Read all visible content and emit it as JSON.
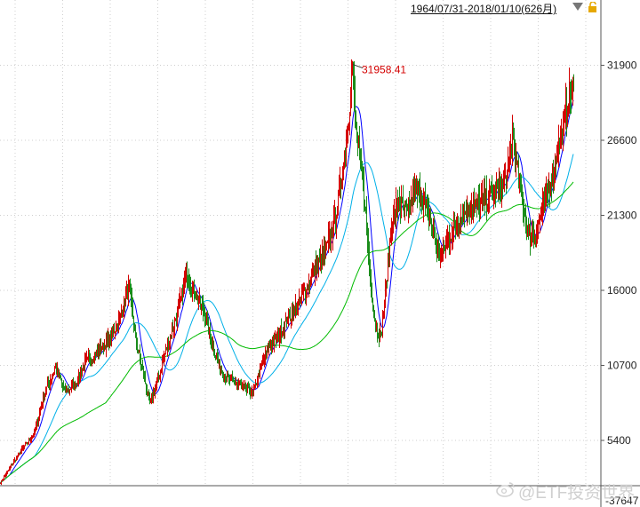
{
  "header": {
    "range_label": "1964/07/31-2018/01/10(626月)"
  },
  "icons": {
    "dropdown": "chevron-down-icon",
    "lock": "lock-icon",
    "watermark": "weibo-icon"
  },
  "watermark": {
    "text": "@ETF投资世界"
  },
  "colors": {
    "up_candle": "#d40000",
    "down_candle": "#1a8c1a",
    "ma_short": "#0000ff",
    "ma_mid": "#00b0e8",
    "ma_long": "#00bb00",
    "peak_label": "#d40000",
    "grid": "#cfcfcf"
  },
  "chart_data": {
    "type": "candlestick",
    "title": "",
    "xlabel": "",
    "ylabel": "",
    "x_range": [
      "1964/07/31",
      "2018/01/10"
    ],
    "period_count": 626,
    "ylim": [
      100,
      34000
    ],
    "y_ticks": [
      31900,
      26600,
      21300,
      16000,
      10700,
      5400
    ],
    "lower_panel_tick": "37647",
    "grid": true,
    "peak": {
      "label": "31958.41",
      "value": 31958.41
    },
    "anchors": [
      [
        0,
        2400
      ],
      [
        12,
        3600
      ],
      [
        25,
        4800
      ],
      [
        38,
        5900
      ],
      [
        50,
        8800
      ],
      [
        62,
        10600
      ],
      [
        72,
        8900
      ],
      [
        84,
        9300
      ],
      [
        95,
        10900
      ],
      [
        112,
        11800
      ],
      [
        125,
        12700
      ],
      [
        135,
        14200
      ],
      [
        145,
        16200
      ],
      [
        152,
        12500
      ],
      [
        160,
        10300
      ],
      [
        168,
        8000
      ],
      [
        176,
        9400
      ],
      [
        186,
        11800
      ],
      [
        198,
        14100
      ],
      [
        210,
        17300
      ],
      [
        218,
        15900
      ],
      [
        228,
        14600
      ],
      [
        236,
        12700
      ],
      [
        246,
        10700
      ],
      [
        256,
        9700
      ],
      [
        270,
        9300
      ],
      [
        284,
        8700
      ],
      [
        292,
        10300
      ],
      [
        300,
        11800
      ],
      [
        312,
        12700
      ],
      [
        322,
        13900
      ],
      [
        338,
        15300
      ],
      [
        352,
        17300
      ],
      [
        366,
        18800
      ],
      [
        376,
        20800
      ],
      [
        386,
        24900
      ],
      [
        392,
        28500
      ],
      [
        396,
        31958
      ],
      [
        400,
        27300
      ],
      [
        404,
        25500
      ],
      [
        410,
        22300
      ],
      [
        416,
        16800
      ],
      [
        422,
        13400
      ],
      [
        428,
        12700
      ],
      [
        434,
        16400
      ],
      [
        440,
        20800
      ],
      [
        448,
        22300
      ],
      [
        458,
        21300
      ],
      [
        466,
        23100
      ],
      [
        474,
        22700
      ],
      [
        484,
        20900
      ],
      [
        494,
        18400
      ],
      [
        504,
        19700
      ],
      [
        512,
        20400
      ],
      [
        520,
        21400
      ],
      [
        532,
        22000
      ],
      [
        544,
        22400
      ],
      [
        554,
        22800
      ],
      [
        562,
        23300
      ],
      [
        570,
        23900
      ],
      [
        576,
        27000
      ],
      [
        582,
        24400
      ],
      [
        588,
        22100
      ],
      [
        594,
        19700
      ],
      [
        604,
        20300
      ],
      [
        612,
        22100
      ],
      [
        622,
        24500
      ],
      [
        632,
        27300
      ],
      [
        640,
        29700
      ],
      [
        645,
        30300
      ]
    ],
    "moving_averages": [
      {
        "color_key": "ma_short",
        "period": 12
      },
      {
        "color_key": "ma_mid",
        "period": 40
      },
      {
        "color_key": "ma_long",
        "period": 120
      }
    ]
  }
}
